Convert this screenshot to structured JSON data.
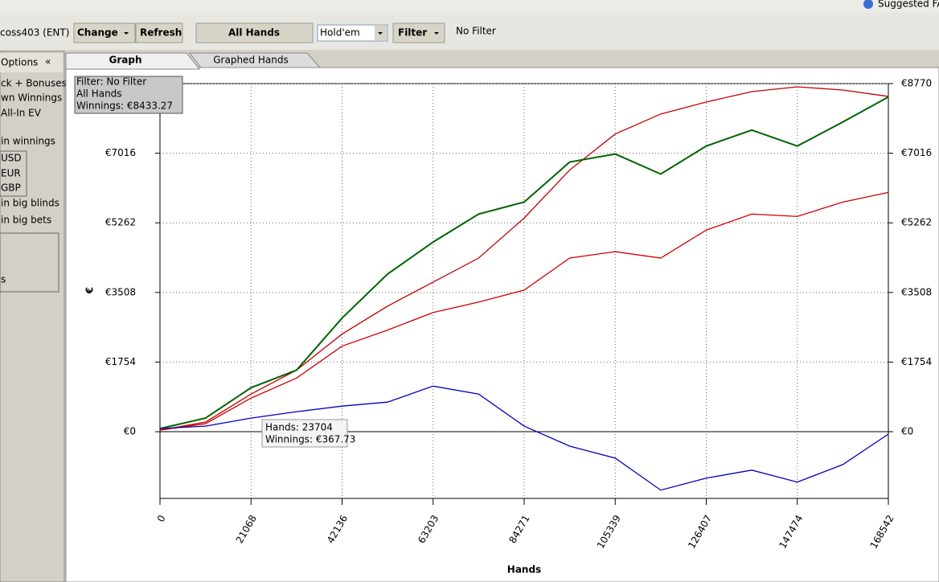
{
  "top_bar": {
    "help": "Suggested FA"
  },
  "toolbar": {
    "player": "coss403 (ENT)",
    "change": "Change",
    "refresh": "Refresh",
    "all_hands": "All Hands",
    "game": "Hold'em",
    "filter": "Filter",
    "filter_value": "No Filter"
  },
  "sidebar": {
    "options": "Options",
    "collapse": "«",
    "items": [
      "ck + Bonuses",
      "wn Winnings",
      "All-In EV",
      "in winnings",
      "USD",
      "EUR",
      "GBP",
      "in big blinds",
      "in big bets",
      "s"
    ]
  },
  "tabs": [
    "Graph",
    "Graphed Hands"
  ],
  "info_box": [
    "Filter: No Filter",
    "All Hands",
    "Winnings: €8433.27"
  ],
  "tooltip": [
    "Hands: 23704",
    "Winnings: €367.73"
  ],
  "chart_data": {
    "type": "line",
    "x_label": "Hands",
    "y_label": "€",
    "x": [
      0,
      10534,
      21068,
      31602,
      42136,
      52670,
      63203,
      73737,
      84271,
      94805,
      105339,
      115873,
      126407,
      136941,
      147474,
      158008,
      168542
    ],
    "series": [
      {
        "color": "#c00000",
        "values": [
          40,
          242,
          948,
          1552,
          2460,
          3165,
          3770,
          4375,
          5383,
          6592,
          7500,
          8004,
          8306,
          8568,
          8689,
          8608,
          8447
        ]
      },
      {
        "color": "#d00000",
        "values": [
          40,
          202,
          847,
          1351,
          2157,
          2560,
          3004,
          3266,
          3568,
          4375,
          4536,
          4375,
          5080,
          5484,
          5423,
          5786,
          6028
        ]
      },
      {
        "color": "#006400",
        "values": [
          80,
          343,
          1109,
          1552,
          2863,
          3972,
          4778,
          5484,
          5786,
          6794,
          6996,
          6492,
          7197,
          7600,
          7197,
          7802,
          8433.27
        ]
      },
      {
        "color": "#0000c0",
        "values": [
          80,
          141,
          343,
          504,
          645,
          746,
          1149,
          948,
          141,
          -363,
          -665,
          -1472,
          -1169,
          -968,
          -1270,
          -827,
          -60
        ]
      }
    ],
    "xlim": [
      0,
      168542
    ],
    "ylim": [
      -1680,
      8770
    ],
    "xticks": [
      0,
      21068,
      42136,
      63203,
      84271,
      105339,
      126407,
      147474,
      168542
    ],
    "yticks": [
      {
        "value": 0,
        "label": "€0"
      },
      {
        "value": 1754,
        "label": "€1754"
      },
      {
        "value": 3508,
        "label": "€3508"
      },
      {
        "value": 5262,
        "label": "€5262"
      },
      {
        "value": 7016,
        "label": "€7016"
      },
      {
        "value": 8770,
        "label": "€8770"
      }
    ],
    "grid": true
  }
}
